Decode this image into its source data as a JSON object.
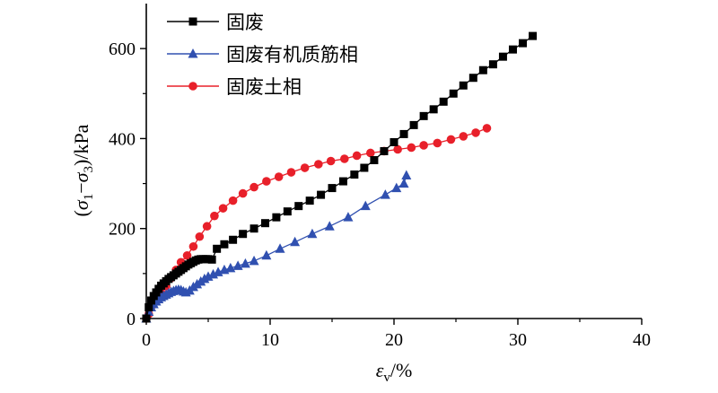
{
  "chart_data": {
    "type": "line",
    "title": "",
    "xlabel": "εv/%",
    "ylabel": "(σ1−σ3)/kPa",
    "xlim": [
      0,
      40
    ],
    "ylim": [
      0,
      700
    ],
    "xticks": [
      0,
      10,
      20,
      30,
      40
    ],
    "yticks": [
      0,
      200,
      400,
      600
    ],
    "grid": false,
    "legend_position": "top-left",
    "series": [
      {
        "name": "固废",
        "marker": "square",
        "color": "#000000",
        "points": [
          [
            0,
            0
          ],
          [
            0.2,
            25
          ],
          [
            0.4,
            40
          ],
          [
            0.6,
            50
          ],
          [
            0.8,
            58
          ],
          [
            1.0,
            66
          ],
          [
            1.2,
            73
          ],
          [
            1.4,
            78
          ],
          [
            1.6,
            83
          ],
          [
            1.8,
            88
          ],
          [
            2.0,
            92
          ],
          [
            2.2,
            96
          ],
          [
            2.4,
            100
          ],
          [
            2.6,
            104
          ],
          [
            2.8,
            108
          ],
          [
            3.0,
            112
          ],
          [
            3.2,
            116
          ],
          [
            3.4,
            120
          ],
          [
            3.6,
            123
          ],
          [
            3.8,
            126
          ],
          [
            4.0,
            129
          ],
          [
            4.2,
            131
          ],
          [
            4.4,
            132
          ],
          [
            4.6,
            132
          ],
          [
            4.8,
            132
          ],
          [
            5.0,
            132
          ],
          [
            5.3,
            131
          ],
          [
            5.7,
            155
          ],
          [
            6.3,
            165
          ],
          [
            7.0,
            175
          ],
          [
            7.8,
            188
          ],
          [
            8.7,
            200
          ],
          [
            9.6,
            212
          ],
          [
            10.5,
            225
          ],
          [
            11.4,
            238
          ],
          [
            12.3,
            250
          ],
          [
            13.2,
            262
          ],
          [
            14.1,
            275
          ],
          [
            15.0,
            290
          ],
          [
            15.9,
            305
          ],
          [
            16.8,
            320
          ],
          [
            17.6,
            335
          ],
          [
            18.4,
            352
          ],
          [
            19.2,
            372
          ],
          [
            20.0,
            392
          ],
          [
            20.8,
            410
          ],
          [
            21.6,
            430
          ],
          [
            22.4,
            450
          ],
          [
            23.2,
            465
          ],
          [
            24.0,
            482
          ],
          [
            24.8,
            500
          ],
          [
            25.6,
            518
          ],
          [
            26.4,
            535
          ],
          [
            27.2,
            552
          ],
          [
            28.0,
            565
          ],
          [
            28.8,
            582
          ],
          [
            29.6,
            598
          ],
          [
            30.4,
            612
          ],
          [
            31.2,
            628
          ]
        ]
      },
      {
        "name": "固废有机质筋相",
        "marker": "triangle",
        "color": "#3050b0",
        "points": [
          [
            0,
            0
          ],
          [
            0.2,
            15
          ],
          [
            0.4,
            25
          ],
          [
            0.6,
            32
          ],
          [
            0.8,
            38
          ],
          [
            1.0,
            43
          ],
          [
            1.2,
            47
          ],
          [
            1.4,
            50
          ],
          [
            1.6,
            53
          ],
          [
            1.8,
            56
          ],
          [
            2.0,
            59
          ],
          [
            2.2,
            61
          ],
          [
            2.4,
            63
          ],
          [
            2.6,
            64
          ],
          [
            2.8,
            63
          ],
          [
            3.0,
            60
          ],
          [
            3.2,
            58
          ],
          [
            3.5,
            62
          ],
          [
            3.8,
            70
          ],
          [
            4.1,
            76
          ],
          [
            4.4,
            82
          ],
          [
            4.7,
            88
          ],
          [
            5.0,
            93
          ],
          [
            5.4,
            98
          ],
          [
            5.8,
            103
          ],
          [
            6.3,
            108
          ],
          [
            6.8,
            112
          ],
          [
            7.4,
            117
          ],
          [
            8.0,
            122
          ],
          [
            8.7,
            128
          ],
          [
            9.7,
            140
          ],
          [
            10.8,
            155
          ],
          [
            12.0,
            170
          ],
          [
            13.4,
            188
          ],
          [
            14.8,
            205
          ],
          [
            16.3,
            225
          ],
          [
            17.7,
            250
          ],
          [
            19.3,
            275
          ],
          [
            20.2,
            290
          ],
          [
            20.8,
            300
          ],
          [
            21.0,
            318
          ]
        ]
      },
      {
        "name": "固废土相",
        "marker": "circle",
        "color": "#e8202a",
        "points": [
          [
            0,
            0
          ],
          [
            0.2,
            10
          ],
          [
            0.5,
            30
          ],
          [
            0.8,
            45
          ],
          [
            1.2,
            57
          ],
          [
            1.6,
            72
          ],
          [
            2.0,
            90
          ],
          [
            2.4,
            108
          ],
          [
            2.8,
            125
          ],
          [
            3.3,
            140
          ],
          [
            3.8,
            160
          ],
          [
            4.3,
            182
          ],
          [
            4.9,
            205
          ],
          [
            5.5,
            228
          ],
          [
            6.2,
            245
          ],
          [
            7.0,
            262
          ],
          [
            7.8,
            278
          ],
          [
            8.7,
            292
          ],
          [
            9.7,
            305
          ],
          [
            10.7,
            315
          ],
          [
            11.7,
            325
          ],
          [
            12.8,
            335
          ],
          [
            13.9,
            343
          ],
          [
            14.9,
            350
          ],
          [
            16.0,
            355
          ],
          [
            17.0,
            362
          ],
          [
            18.1,
            368
          ],
          [
            19.2,
            372
          ],
          [
            20.3,
            376
          ],
          [
            21.4,
            380
          ],
          [
            22.4,
            385
          ],
          [
            23.5,
            390
          ],
          [
            24.6,
            398
          ],
          [
            25.6,
            405
          ],
          [
            26.6,
            413
          ],
          [
            27.5,
            423
          ]
        ]
      }
    ]
  }
}
